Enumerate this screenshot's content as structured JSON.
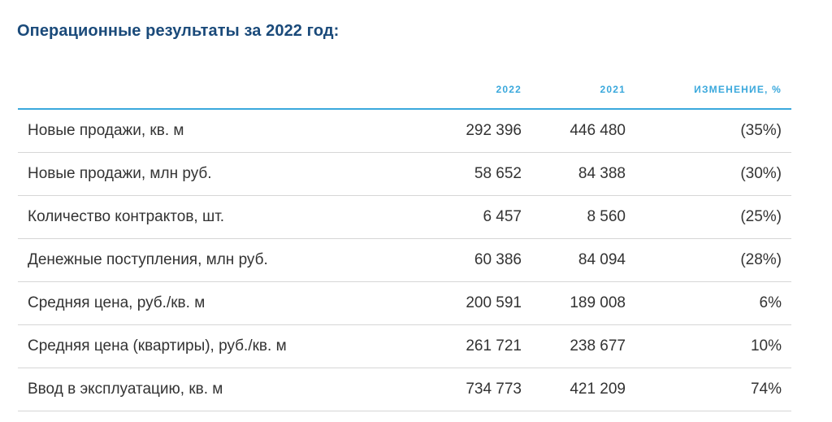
{
  "title": "Операционные результаты за 2022 год:",
  "table": {
    "headers": {
      "col_2022": "2022",
      "col_2021": "2021",
      "col_change": "ИЗМЕНЕНИЕ, %"
    },
    "rows": [
      {
        "label": "Новые продажи, кв. м",
        "v2022": "292 396",
        "v2021": "446 480",
        "change": "(35%)"
      },
      {
        "label": "Новые продажи, млн руб.",
        "v2022": "58 652",
        "v2021": "84 388",
        "change": "(30%)"
      },
      {
        "label": "Количество контрактов, шт.",
        "v2022": "6 457",
        "v2021": "8 560",
        "change": "(25%)"
      },
      {
        "label": "Денежные поступления, млн руб.",
        "v2022": "60 386",
        "v2021": "84 094",
        "change": "(28%)"
      },
      {
        "label": "Средняя цена, руб./кв. м",
        "v2022": "200 591",
        "v2021": "189 008",
        "change": "6%"
      },
      {
        "label": "Средняя цена (квартиры), руб./кв. м",
        "v2022": "261 721",
        "v2021": "238 677",
        "change": "10%"
      },
      {
        "label": "Ввод в эксплуатацию, кв. м",
        "v2022": "734 773",
        "v2021": "421 209",
        "change": "74%"
      }
    ]
  }
}
